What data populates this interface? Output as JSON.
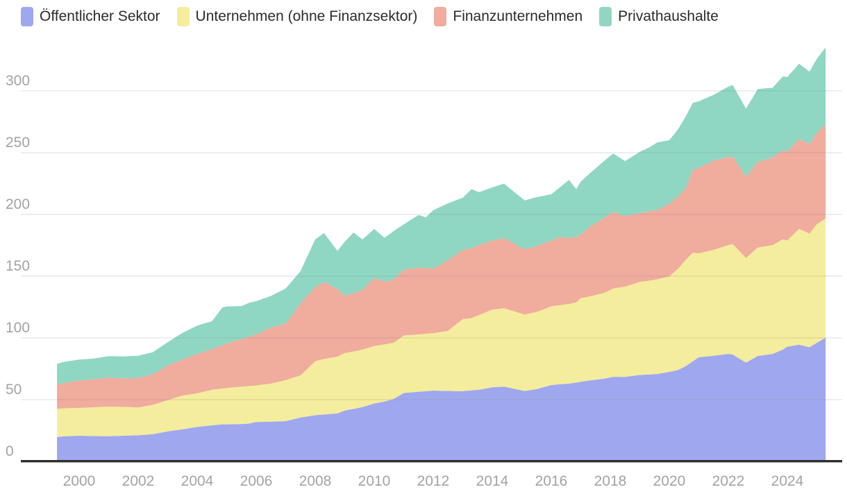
{
  "chart_data": {
    "type": "area",
    "stacked": true,
    "title": "",
    "xlabel": "",
    "ylabel": "",
    "grid": "horizontal",
    "legend_position": "top-left",
    "axis_label_color": "#a3a3a3",
    "axis_line_color": "#2e2e2e",
    "y_ticks": [
      0,
      50,
      100,
      150,
      200,
      250,
      300
    ],
    "x_ticks": [
      2000,
      2002,
      2004,
      2006,
      2008,
      2010,
      2012,
      2014,
      2016,
      2018,
      2020,
      2022,
      2024
    ],
    "ylim": [
      0,
      373
    ],
    "xlim": [
      1999.2,
      2025.35
    ],
    "x": [
      1999.25,
      1999.5,
      2000,
      2000.5,
      2001,
      2001.5,
      2002,
      2002.5,
      2003,
      2003.5,
      2004,
      2004.5,
      2004.85,
      2005,
      2005.5,
      2005.75,
      2006,
      2006.5,
      2007,
      2007.5,
      2008,
      2008.3,
      2008.75,
      2009,
      2009.3,
      2009.6,
      2010,
      2010.35,
      2010.65,
      2011,
      2011.5,
      2011.75,
      2012,
      2012.5,
      2013,
      2013.3,
      2013.55,
      2014,
      2014.4,
      2015.1,
      2015.5,
      2016,
      2016.3,
      2016.6,
      2016.85,
      2017,
      2017.3,
      2017.8,
      2018.1,
      2018.5,
      2019,
      2019.3,
      2019.6,
      2020,
      2020.3,
      2020.55,
      2020.8,
      2021,
      2021.5,
      2022,
      2022.15,
      2022.6,
      2023,
      2023.5,
      2023.85,
      2024,
      2024.4,
      2024.75,
      2025,
      2025.3
    ],
    "series": [
      {
        "name": "Öffentlicher Sektor",
        "key": "oeffentlicher-sektor",
        "color": "#9fa7ee",
        "values": [
          19.7,
          20.3,
          20.8,
          20.5,
          20.4,
          20.8,
          21.1,
          22.0,
          24.3,
          26.0,
          28.0,
          29.2,
          30.0,
          30.0,
          30.3,
          30.6,
          31.9,
          32.2,
          32.6,
          35.5,
          37.4,
          38.0,
          38.8,
          41.2,
          42.5,
          44.0,
          46.9,
          48.5,
          50.5,
          55.4,
          56.4,
          56.8,
          57.3,
          57.0,
          56.9,
          57.5,
          58.0,
          60.0,
          60.5,
          57.0,
          58.5,
          61.8,
          62.5,
          63.0,
          63.8,
          64.5,
          65.5,
          67.0,
          68.5,
          68.4,
          70.0,
          70.3,
          70.8,
          72.5,
          74.0,
          77.0,
          81.0,
          84.3,
          85.5,
          87.1,
          86.5,
          80.0,
          85.4,
          87.0,
          90.5,
          92.9,
          94.5,
          92.5,
          96.0,
          100.2
        ]
      },
      {
        "name": "Unternehmen (ohne Finanzsektor)",
        "key": "unternehmen-ohne-finanzsektor",
        "color": "#f4ed9d",
        "values": [
          22.8,
          22.7,
          22.5,
          23.3,
          24.0,
          23.3,
          22.6,
          23.8,
          25.3,
          27.3,
          27.1,
          28.8,
          29.0,
          29.5,
          30.2,
          30.4,
          29.6,
          30.8,
          33.2,
          34.1,
          43.6,
          44.9,
          46.0,
          46.5,
          46.5,
          46.5,
          46.5,
          46.2,
          45.5,
          46.5,
          46.4,
          46.5,
          46.5,
          48.7,
          58.3,
          58.5,
          60.5,
          63.0,
          63.5,
          61.9,
          62.5,
          63.7,
          64.0,
          64.5,
          64.9,
          67.7,
          68.0,
          69.5,
          71.5,
          73.1,
          75.3,
          75.9,
          76.7,
          77.3,
          82.0,
          86.0,
          88.0,
          84.2,
          85.8,
          88.0,
          89.5,
          84.8,
          87.8,
          88.1,
          89.3,
          86.0,
          93.8,
          92.0,
          96.0,
          96.5
        ]
      },
      {
        "name": "Finanzunternehmen",
        "key": "finanzunternehmen",
        "color": "#f0ac9d",
        "values": [
          19.8,
          20.5,
          22.2,
          22.7,
          23.4,
          23.1,
          23.8,
          24.7,
          27.9,
          29.2,
          31.9,
          33.0,
          35.0,
          36.0,
          38.5,
          40.0,
          41.5,
          45.5,
          45.6,
          58.5,
          60.0,
          62.6,
          54.7,
          46.5,
          47.1,
          48.4,
          55.0,
          50.8,
          51.0,
          53.1,
          54.2,
          53.2,
          52.2,
          57.3,
          56.1,
          56.5,
          56.6,
          55.9,
          56.7,
          52.8,
          53.2,
          53.4,
          55.2,
          53.2,
          53.3,
          51.3,
          56.5,
          60.5,
          62.2,
          57.0,
          55.8,
          56.3,
          56.0,
          59.0,
          58.5,
          58.0,
          67.0,
          69.4,
          72.2,
          71.2,
          71.2,
          65.5,
          69.3,
          71.2,
          72.1,
          72.1,
          72.9,
          72.4,
          74.0,
          76.3
        ]
      },
      {
        "name": "Privathaushalte",
        "key": "privathaushalte",
        "color": "#8fd7c3",
        "values": [
          16.7,
          17.2,
          16.9,
          16.8,
          17.5,
          17.8,
          18.0,
          18.0,
          19.0,
          21.5,
          23.0,
          22.5,
          30.5,
          30.0,
          26.8,
          27.3,
          26.8,
          25.5,
          28.6,
          25.9,
          38.8,
          39.5,
          31.0,
          43.6,
          49.3,
          40.8,
          39.8,
          35.5,
          39.3,
          37.0,
          42.5,
          41.0,
          47.4,
          46.0,
          42.2,
          48.0,
          42.9,
          43.0,
          44.2,
          39.6,
          39.8,
          37.4,
          40.3,
          47.2,
          38.5,
          43.1,
          43.1,
          46.4,
          47.2,
          44.7,
          49.6,
          51.5,
          54.8,
          51.3,
          54.5,
          58.0,
          54.3,
          53.7,
          53.3,
          57.1,
          57.5,
          55.3,
          59.0,
          56.2,
          59.9,
          60.2,
          60.9,
          58.7,
          60.0,
          62.2
        ]
      }
    ]
  }
}
